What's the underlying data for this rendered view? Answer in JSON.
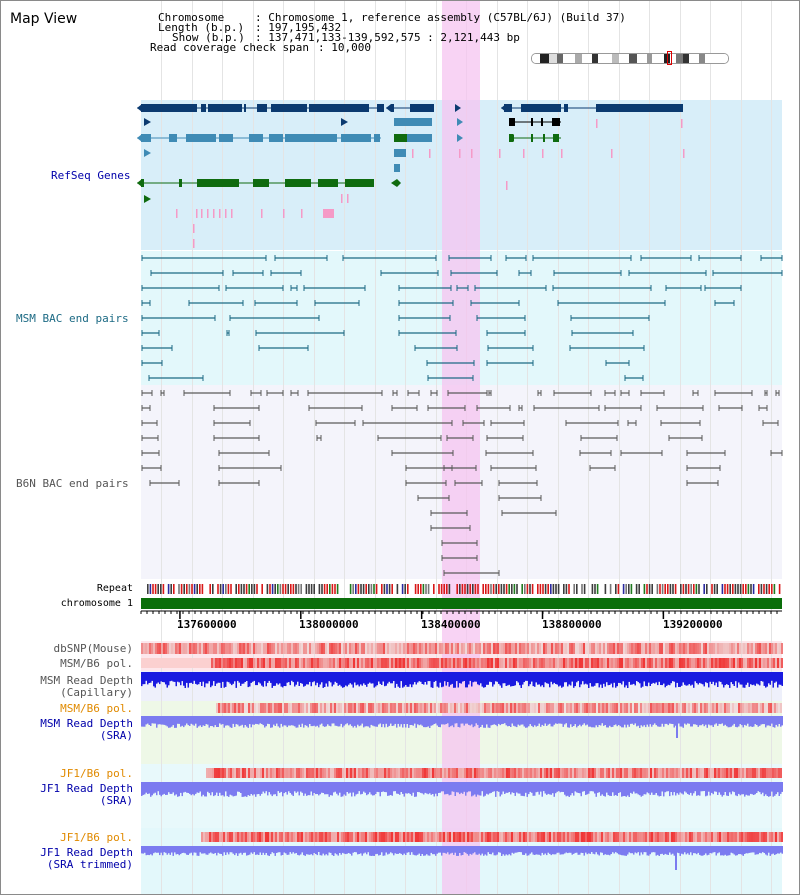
{
  "view_title": "Map View",
  "info": {
    "chromosome_key": "Chromosome",
    "chromosome_val": ": Chromosome 1, reference assembly (C57BL/6J) (Build 37)",
    "length_key": "Length (b.p.)",
    "length_val": ": 197,195,432",
    "show_key": "Show (b.p.)",
    "show_val": ": 137,471,133-139,592,575 : 2,121,443 bp",
    "coverage_key": "Read coverage check span",
    "coverage_val": ": 10,000"
  },
  "tracks": {
    "refseq": "RefSeq Genes",
    "msm_bac": "MSM BAC end pairs",
    "b6n_bac": "B6N BAC end pairs",
    "repeat": "Repeat",
    "chromosome": "chromosome 1",
    "dbsnp": "dbSNP(Mouse)",
    "msm_b6_pol_1": "MSM/B6 pol.",
    "msm_depth_cap_1": "MSM Read Depth",
    "msm_depth_cap_2": "(Capillary)",
    "msm_b6_pol_2": "MSM/B6 pol.",
    "msm_depth_sra_1": "MSM Read Depth",
    "msm_depth_sra_2": "(SRA)",
    "jf1_pol_1": "JF1/B6 pol.",
    "jf1_depth_sra_1": "JF1 Read Depth",
    "jf1_depth_sra_2": "(SRA)",
    "jf1_pol_2": "JF1/B6 pol.",
    "jf1_depth_trim_1": "JF1 Read Depth",
    "jf1_depth_trim_2": "(SRA trimmed)"
  },
  "axis": {
    "ticks": [
      "137600000",
      "138000000",
      "138400000",
      "138800000",
      "139200000"
    ],
    "tick_values": [
      137600000,
      138000000,
      138400000,
      138800000,
      139200000
    ],
    "start": 137471133,
    "end": 139592575
  },
  "colors": {
    "refseq_bg": "#d8eef9",
    "msm_bg": "#e3f8fb",
    "b6n_bg": "#f4f4fb",
    "gene_dark": "#0b3a70",
    "gene_mid": "#3f8bb5",
    "gene_green": "#0f6b0f",
    "gene_pink": "#f59ac7",
    "msm_line": "#1c6a84",
    "b6n_line": "#5a5a5a",
    "chrom_green": "#0a6e0a",
    "highlight": "#f6c4f0",
    "depth_blue": "#1a1ae0",
    "depth_light": "#7b7bf0",
    "pol_red": "#ec3a3a",
    "label_blue": "#0000aa",
    "label_teal": "#1c6a84",
    "label_orange": "#e08a00",
    "label_gray": "#555555"
  }
}
